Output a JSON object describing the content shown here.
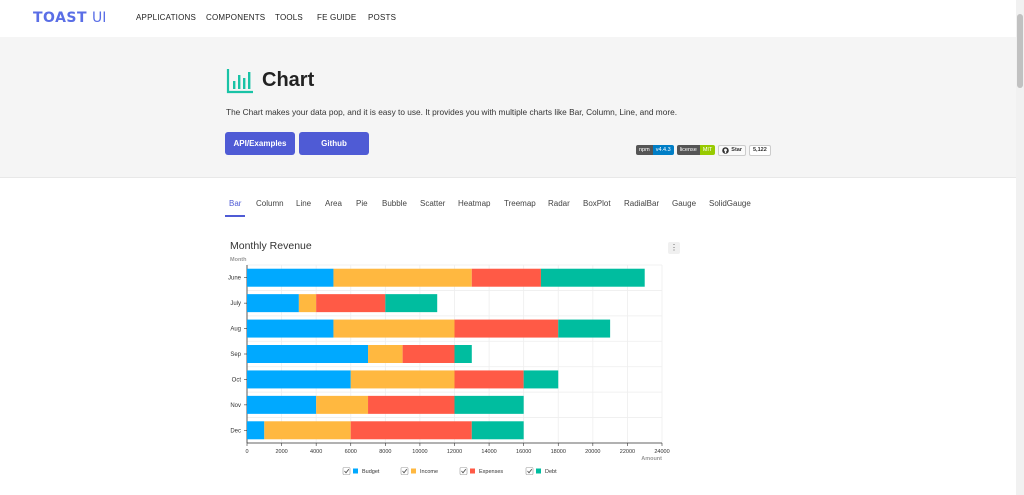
{
  "nav": {
    "logo_text": "TOAST",
    "logo_ui": "UI",
    "items": [
      "APPLICATIONS",
      "COMPONENTS",
      "TOOLS",
      "FE GUIDE",
      "POSTS"
    ]
  },
  "hero": {
    "title": "Chart",
    "description": "The Chart makes your data pop, and it is easy to use. It provides you with multiple charts like Bar, Column, Line, and more.",
    "btn_api": "API/Examples",
    "btn_github": "Github",
    "badges": {
      "npm_label": "npm",
      "npm_value": "v4.4.3",
      "license_label": "license",
      "license_value": "MIT",
      "star_label": "Star",
      "star_count": "5,122"
    }
  },
  "tabs": [
    "Bar",
    "Column",
    "Line",
    "Area",
    "Pie",
    "Bubble",
    "Scatter",
    "Heatmap",
    "Treemap",
    "Radar",
    "BoxPlot",
    "RadialBar",
    "Gauge",
    "SolidGauge"
  ],
  "active_tab": "Bar",
  "colors": {
    "accent": "#4f5bd5",
    "budget": "#00a9ff",
    "income": "#ffb840",
    "expenses": "#ff5a46",
    "debt": "#00bd9f"
  },
  "chart_data": {
    "type": "bar",
    "stacked": true,
    "orientation": "horizontal",
    "title": "Monthly Revenue",
    "ylabel": "Month",
    "xlabel": "Amount",
    "categories": [
      "June",
      "July",
      "Aug",
      "Sep",
      "Oct",
      "Nov",
      "Dec"
    ],
    "xlim": [
      0,
      24000
    ],
    "xticks": [
      0,
      2000,
      4000,
      6000,
      8000,
      10000,
      12000,
      14000,
      16000,
      18000,
      20000,
      22000,
      24000
    ],
    "legend_position": "bottom",
    "series": [
      {
        "name": "Budget",
        "values": [
          5000,
          3000,
          5000,
          7000,
          6000,
          4000,
          1000
        ]
      },
      {
        "name": "Income",
        "values": [
          8000,
          1000,
          7000,
          2000,
          6000,
          3000,
          5000
        ]
      },
      {
        "name": "Expenses",
        "values": [
          4000,
          4000,
          6000,
          3000,
          4000,
          5000,
          7000
        ]
      },
      {
        "name": "Debt",
        "values": [
          6000,
          3000,
          3000,
          1000,
          2000,
          4000,
          3000
        ]
      }
    ]
  }
}
